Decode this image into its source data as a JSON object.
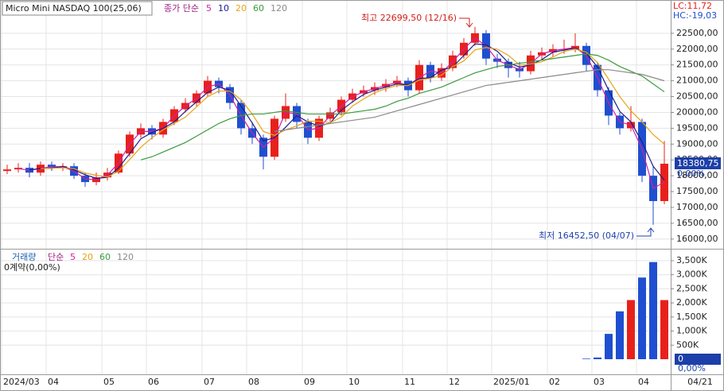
{
  "chart_data": [
    {
      "type": "candlestick",
      "title": "Micro Mini NASDAQ 100(25,06)",
      "indicator_label": "종가 단순",
      "lc_label": "LC:11,72",
      "hc_label": "HC:-19,03",
      "up_color": "#e8201c",
      "down_color": "#1f4fd0",
      "grid": true,
      "ylim": [
        15720,
        23500
      ],
      "yticks": [
        {
          "value": 16000,
          "label": "16000,00"
        },
        {
          "value": 16500,
          "label": "16500,00"
        },
        {
          "value": 17000,
          "label": "17000,00"
        },
        {
          "value": 17500,
          "label": "17500,00"
        },
        {
          "value": 18000,
          "label": "18000,00"
        },
        {
          "value": 18500,
          "label": "18500,00"
        },
        {
          "value": 19000,
          "label": "19000,00"
        },
        {
          "value": 19500,
          "label": "19500,00"
        },
        {
          "value": 20000,
          "label": "20000,00"
        },
        {
          "value": 20500,
          "label": "20500,00"
        },
        {
          "value": 21000,
          "label": "21000,00"
        },
        {
          "value": 21500,
          "label": "21500,00"
        },
        {
          "value": 22000,
          "label": "22000,00"
        },
        {
          "value": 22500,
          "label": "22500,00"
        }
      ],
      "last_price": {
        "value": 18380.75,
        "label": "18380,75"
      },
      "change_label": "0,00%",
      "annotations": [
        {
          "text": "최고 22699,50 (12/16)",
          "color": "#d0201c"
        },
        {
          "text": "최저 16452,50 (04/07)",
          "color": "#1f3fb0"
        }
      ],
      "open": [
        18150,
        18200,
        18250,
        18100,
        18350,
        18250,
        18300,
        18000,
        17800,
        17950,
        18100,
        18700,
        19300,
        19500,
        19300,
        19700,
        20100,
        20300,
        20600,
        21000,
        20800,
        20300,
        19500,
        19200,
        18600,
        19800,
        20200,
        19700,
        19200,
        19800,
        20000,
        20400,
        20600,
        20700,
        20800,
        20900,
        21000,
        20700,
        21500,
        21100,
        21400,
        21800,
        22200,
        22500,
        21700,
        21600,
        21400,
        21300,
        21800,
        21900,
        22000,
        22000,
        22100,
        21500,
        20700,
        19900,
        19500,
        19700,
        18000,
        17200
      ],
      "high": [
        18350,
        18400,
        18400,
        18450,
        18450,
        18400,
        18400,
        18100,
        18100,
        18250,
        18800,
        19400,
        19650,
        19600,
        19800,
        20200,
        20450,
        20700,
        21150,
        21100,
        20900,
        20400,
        19700,
        19300,
        19900,
        20600,
        20300,
        19800,
        19900,
        20150,
        20500,
        20750,
        20850,
        20950,
        21050,
        21150,
        21100,
        21650,
        21600,
        21550,
        21950,
        22350,
        22699.5,
        22600,
        21850,
        21700,
        21600,
        21950,
        22050,
        22150,
        22300,
        22500,
        22200,
        21600,
        20800,
        20000,
        20200,
        19800,
        18300,
        19100
      ],
      "low": [
        18050,
        18100,
        17950,
        18000,
        18150,
        18150,
        17900,
        17650,
        17700,
        17850,
        18050,
        18600,
        19200,
        19150,
        19200,
        19600,
        20000,
        20200,
        20500,
        20600,
        20100,
        19300,
        19000,
        18200,
        18500,
        19700,
        19500,
        19000,
        19100,
        19700,
        19900,
        20300,
        20500,
        20550,
        20650,
        20800,
        20500,
        20600,
        20950,
        21000,
        21300,
        21700,
        22100,
        21500,
        21400,
        21100,
        21100,
        21200,
        21650,
        21750,
        21850,
        21900,
        21300,
        20500,
        19600,
        19300,
        19400,
        17800,
        16452.5,
        17100
      ],
      "close": [
        18200,
        18250,
        18100,
        18350,
        18250,
        18300,
        18000,
        17800,
        17950,
        18100,
        18700,
        19300,
        19500,
        19300,
        19700,
        20100,
        20300,
        20600,
        21000,
        20800,
        20300,
        19500,
        19200,
        18600,
        19800,
        20200,
        19700,
        19200,
        19800,
        20000,
        20400,
        20600,
        20700,
        20800,
        20900,
        21000,
        20700,
        21500,
        21100,
        21400,
        21800,
        22200,
        22500,
        21700,
        21600,
        21400,
        21300,
        21800,
        21900,
        22000,
        22000,
        22100,
        21500,
        20700,
        19900,
        19500,
        19700,
        18000,
        17200,
        18380.75
      ],
      "series": [
        {
          "name": "5",
          "color": "#d020a0",
          "values": [
            null,
            18225,
            18175,
            18225,
            18300,
            18275,
            18150,
            17900,
            17875,
            18025,
            18400,
            19000,
            19400,
            19400,
            19500,
            19900,
            20200,
            20450,
            20800,
            20900,
            20550,
            19900,
            19350,
            18900,
            19200,
            20000,
            19950,
            19450,
            19500,
            19900,
            20200,
            20500,
            20650,
            20750,
            20850,
            20950,
            20850,
            21100,
            21300,
            21250,
            21600,
            22000,
            22350,
            22100,
            21650,
            21500,
            21350,
            21550,
            21850,
            21950,
            22000,
            22050,
            21800,
            21100,
            20300,
            19700,
            19600,
            18850,
            17600,
            17800
          ]
        },
        {
          "name": "10",
          "color": "#1c1c8c",
          "values": [
            null,
            null,
            18183,
            18233,
            18233,
            18300,
            18183,
            18033,
            17917,
            17950,
            18250,
            18700,
            19167,
            19367,
            19500,
            19700,
            20033,
            20333,
            20633,
            20800,
            20700,
            20200,
            19667,
            19100,
            19200,
            19533,
            19900,
            19700,
            19567,
            19667,
            20067,
            20333,
            20567,
            20700,
            20800,
            20900,
            20867,
            21067,
            21100,
            21333,
            21433,
            21800,
            22167,
            22133,
            21933,
            21567,
            21433,
            21500,
            21667,
            21900,
            21967,
            22033,
            21867,
            21433,
            20700,
            20033,
            19700,
            19067,
            18300,
            17860
          ]
        },
        {
          "name": "20",
          "color": "#e8a317",
          "values": [
            null,
            null,
            null,
            18225,
            18238,
            18250,
            18225,
            18088,
            18013,
            17963,
            18138,
            18513,
            18900,
            19200,
            19450,
            19650,
            19850,
            20175,
            20500,
            20675,
            20675,
            20400,
            19950,
            19400,
            19275,
            19450,
            19575,
            19725,
            19725,
            19675,
            19850,
            20200,
            20425,
            20625,
            20750,
            20850,
            20850,
            21025,
            21075,
            21175,
            21450,
            21625,
            21975,
            22050,
            22000,
            21800,
            21500,
            21525,
            21600,
            21750,
            21925,
            22000,
            21900,
            21575,
            21050,
            20500,
            20050,
            19700,
            19300,
            19000
          ]
        },
        {
          "name": "60",
          "color": "#3c9a3c",
          "values": [
            null,
            null,
            null,
            null,
            null,
            null,
            null,
            null,
            null,
            null,
            null,
            null,
            18500,
            18600,
            18750,
            18900,
            19050,
            19250,
            19450,
            19650,
            19800,
            19900,
            19950,
            19950,
            20000,
            20050,
            20000,
            19950,
            19950,
            19950,
            19950,
            20000,
            20050,
            20100,
            20200,
            20350,
            20450,
            20600,
            20700,
            20800,
            20950,
            21100,
            21250,
            21350,
            21450,
            21500,
            21550,
            21600,
            21650,
            21700,
            21750,
            21800,
            21850,
            21800,
            21650,
            21450,
            21300,
            21150,
            20900,
            20650
          ]
        },
        {
          "name": "120",
          "color": "#8a8a8a",
          "values": [
            null,
            null,
            null,
            null,
            null,
            null,
            null,
            null,
            null,
            null,
            null,
            null,
            null,
            null,
            null,
            null,
            null,
            null,
            null,
            null,
            null,
            null,
            null,
            null,
            19400,
            19450,
            19500,
            19550,
            19600,
            19650,
            19700,
            19750,
            19800,
            19850,
            19950,
            20050,
            20150,
            20250,
            20350,
            20450,
            20550,
            20650,
            20750,
            20850,
            20900,
            20950,
            21000,
            21050,
            21100,
            21150,
            21200,
            21250,
            21300,
            21350,
            21350,
            21300,
            21250,
            21200,
            21100,
            21000
          ]
        }
      ]
    },
    {
      "type": "bar",
      "title": "거래량",
      "indicator_label": "단순",
      "legend_items": [
        {
          "name": "5",
          "color": "#d020a0"
        },
        {
          "name": "20",
          "color": "#e8a317"
        },
        {
          "name": "60",
          "color": "#3c9a3c"
        },
        {
          "name": "120",
          "color": "#8a8a8a"
        }
      ],
      "subtitle": "0계약(0,00%)",
      "categories": [
        "2024/03",
        null,
        null,
        null,
        "04",
        null,
        null,
        null,
        null,
        "05",
        null,
        null,
        null,
        "06",
        null,
        null,
        null,
        null,
        "07",
        null,
        null,
        null,
        "08",
        null,
        null,
        null,
        null,
        "09",
        null,
        null,
        null,
        "10",
        null,
        null,
        null,
        null,
        "11",
        null,
        null,
        null,
        "12",
        null,
        null,
        null,
        "2025/01",
        null,
        null,
        null,
        null,
        "02",
        null,
        null,
        null,
        "03",
        null,
        null,
        null,
        "04",
        null,
        null
      ],
      "x_end_label": "04/21",
      "values": [
        0,
        0,
        0,
        0,
        0,
        0,
        0,
        0,
        0,
        0,
        0,
        0,
        0,
        0,
        0,
        0,
        0,
        0,
        0,
        0,
        0,
        0,
        0,
        0,
        0,
        0,
        0,
        0,
        0,
        0,
        0,
        0,
        0,
        0,
        0,
        0,
        0,
        0,
        0,
        0,
        0,
        0,
        0,
        0,
        0,
        0,
        0,
        0,
        0,
        0,
        0,
        0,
        20,
        60,
        900,
        1700,
        2100,
        2900,
        3450,
        2100
      ],
      "ylim": [
        -508,
        3810
      ],
      "yticks": [
        {
          "value": 500,
          "label": "500K"
        },
        {
          "value": 1000,
          "label": "1,000K"
        },
        {
          "value": 1500,
          "label": "1,500K"
        },
        {
          "value": 2000,
          "label": "2,000K"
        },
        {
          "value": 2500,
          "label": "2,500K"
        },
        {
          "value": 3000,
          "label": "3,000K"
        },
        {
          "value": 3500,
          "label": "3,500K"
        }
      ],
      "current_volume": 0,
      "change_label": "0,00%",
      "grid": true
    }
  ]
}
